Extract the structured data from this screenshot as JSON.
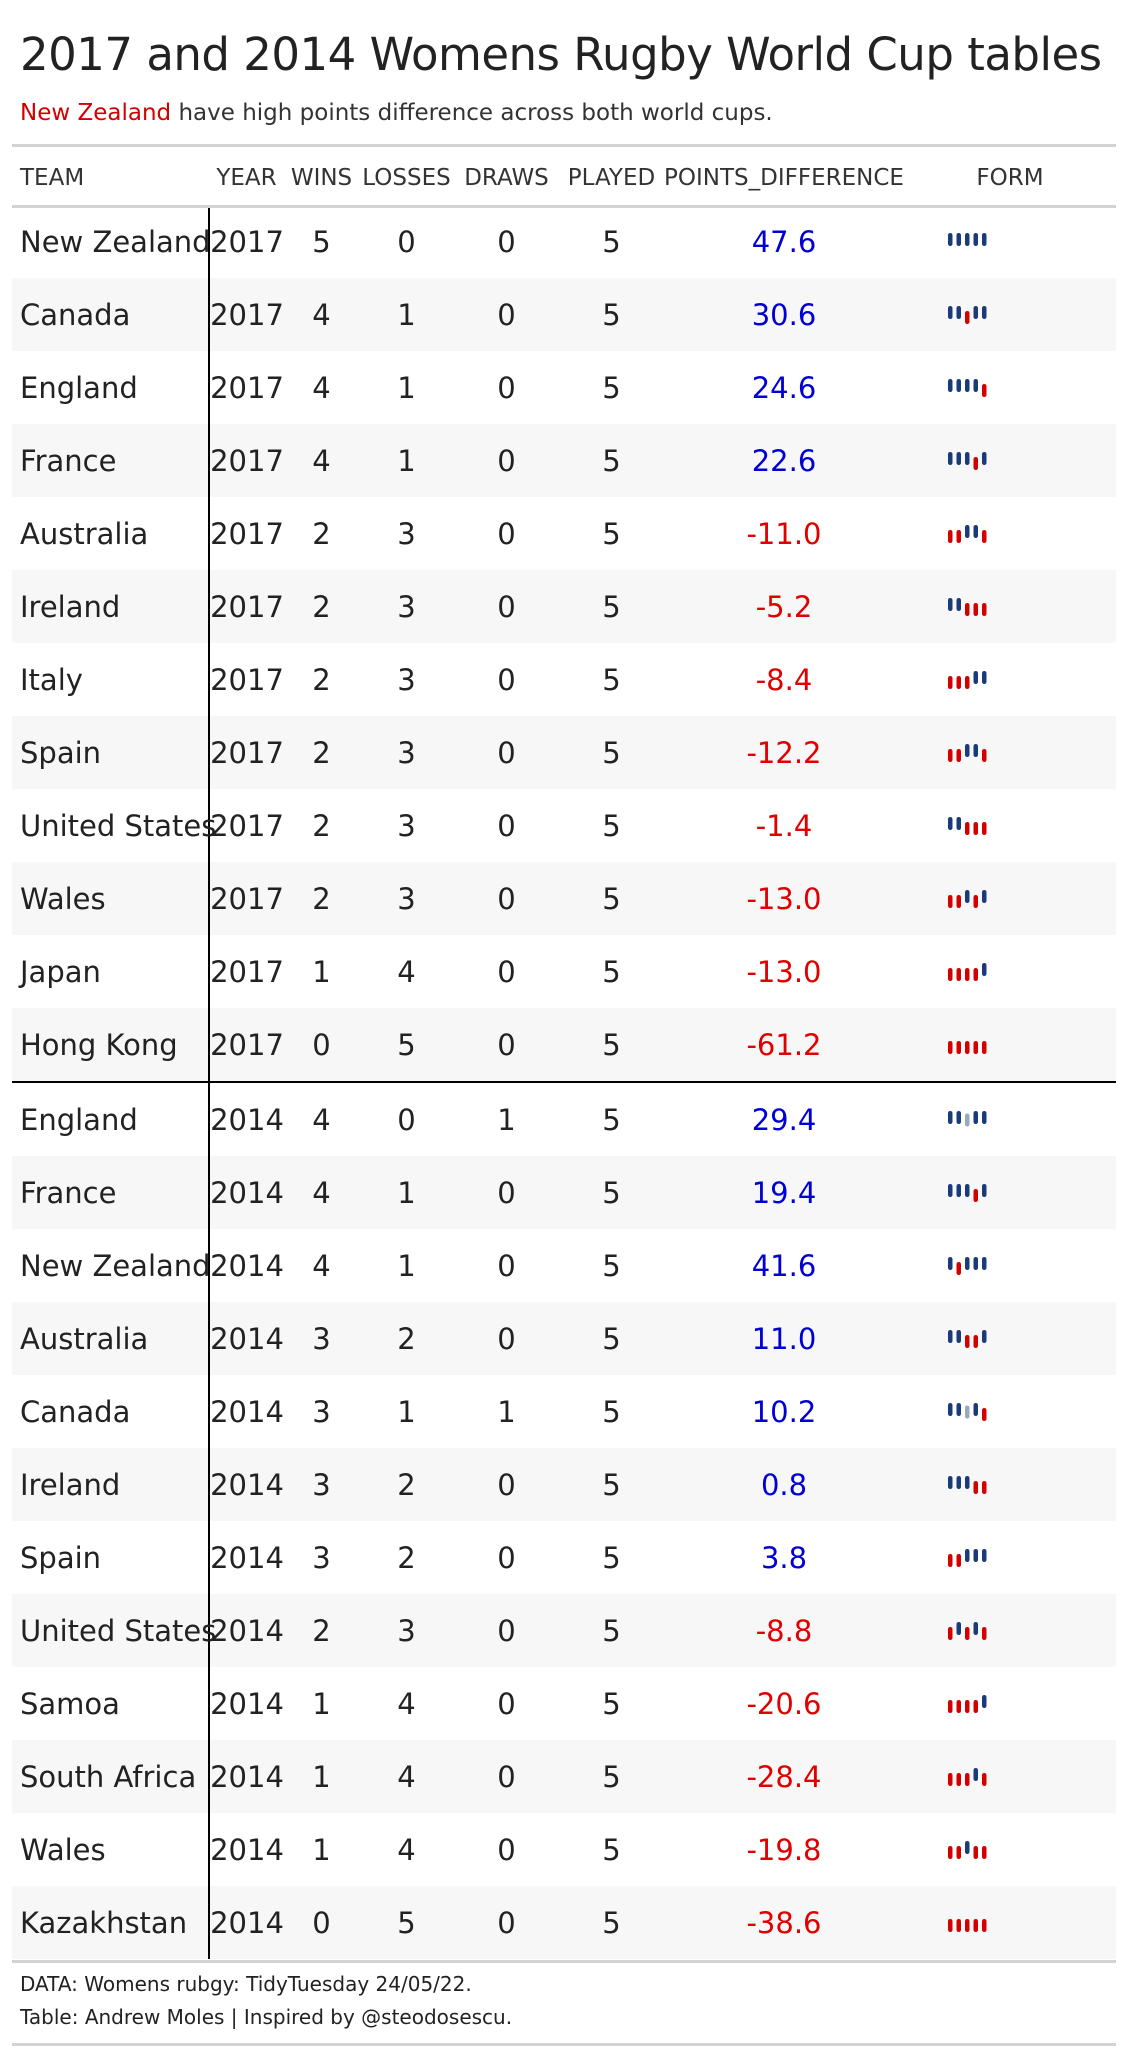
{
  "header": {
    "title": "2017 and 2014 Womens Rugby World Cup tables",
    "subtitle_highlight": "New Zealand",
    "subtitle_rest": " have high points difference across both world cups."
  },
  "columns": [
    "TEAM",
    "YEAR",
    "WINS",
    "LOSSES",
    "DRAWS",
    "PLAYED",
    "POINTS_DIFFERENCE",
    "FORM"
  ],
  "colors": {
    "win": "#1a3a7a",
    "loss": "#d40000",
    "draw": "#9aa9b8",
    "pd_positive": "#0000d4",
    "pd_negative": "#e00000"
  },
  "chart_data": {
    "type": "table",
    "form_legend": {
      "W": "win",
      "L": "loss",
      "D": "draw"
    },
    "rows": [
      {
        "team": "New Zealand",
        "year": "2017",
        "wins": "5",
        "losses": "0",
        "draws": "0",
        "played": "5",
        "pd": "47.6",
        "form": [
          "W",
          "W",
          "W",
          "W",
          "W"
        ]
      },
      {
        "team": "Canada",
        "year": "2017",
        "wins": "4",
        "losses": "1",
        "draws": "0",
        "played": "5",
        "pd": "30.6",
        "form": [
          "W",
          "W",
          "L",
          "W",
          "W"
        ]
      },
      {
        "team": "England",
        "year": "2017",
        "wins": "4",
        "losses": "1",
        "draws": "0",
        "played": "5",
        "pd": "24.6",
        "form": [
          "W",
          "W",
          "W",
          "W",
          "L"
        ]
      },
      {
        "team": "France",
        "year": "2017",
        "wins": "4",
        "losses": "1",
        "draws": "0",
        "played": "5",
        "pd": "22.6",
        "form": [
          "W",
          "W",
          "W",
          "L",
          "W"
        ]
      },
      {
        "team": "Australia",
        "year": "2017",
        "wins": "2",
        "losses": "3",
        "draws": "0",
        "played": "5",
        "pd": "-11.0",
        "form": [
          "L",
          "L",
          "W",
          "W",
          "L"
        ]
      },
      {
        "team": "Ireland",
        "year": "2017",
        "wins": "2",
        "losses": "3",
        "draws": "0",
        "played": "5",
        "pd": "-5.2",
        "form": [
          "W",
          "W",
          "L",
          "L",
          "L"
        ]
      },
      {
        "team": "Italy",
        "year": "2017",
        "wins": "2",
        "losses": "3",
        "draws": "0",
        "played": "5",
        "pd": "-8.4",
        "form": [
          "L",
          "L",
          "L",
          "W",
          "W"
        ]
      },
      {
        "team": "Spain",
        "year": "2017",
        "wins": "2",
        "losses": "3",
        "draws": "0",
        "played": "5",
        "pd": "-12.2",
        "form": [
          "L",
          "L",
          "W",
          "W",
          "L"
        ]
      },
      {
        "team": "United States",
        "year": "2017",
        "wins": "2",
        "losses": "3",
        "draws": "0",
        "played": "5",
        "pd": "-1.4",
        "form": [
          "W",
          "W",
          "L",
          "L",
          "L"
        ]
      },
      {
        "team": "Wales",
        "year": "2017",
        "wins": "2",
        "losses": "3",
        "draws": "0",
        "played": "5",
        "pd": "-13.0",
        "form": [
          "L",
          "L",
          "W",
          "L",
          "W"
        ]
      },
      {
        "team": "Japan",
        "year": "2017",
        "wins": "1",
        "losses": "4",
        "draws": "0",
        "played": "5",
        "pd": "-13.0",
        "form": [
          "L",
          "L",
          "L",
          "L",
          "W"
        ]
      },
      {
        "team": "Hong Kong",
        "year": "2017",
        "wins": "0",
        "losses": "5",
        "draws": "0",
        "played": "5",
        "pd": "-61.2",
        "form": [
          "L",
          "L",
          "L",
          "L",
          "L"
        ]
      },
      {
        "team": "England",
        "year": "2014",
        "wins": "4",
        "losses": "0",
        "draws": "1",
        "played": "5",
        "pd": "29.4",
        "form": [
          "W",
          "W",
          "D",
          "W",
          "W"
        ]
      },
      {
        "team": "France",
        "year": "2014",
        "wins": "4",
        "losses": "1",
        "draws": "0",
        "played": "5",
        "pd": "19.4",
        "form": [
          "W",
          "W",
          "W",
          "L",
          "W"
        ]
      },
      {
        "team": "New Zealand",
        "year": "2014",
        "wins": "4",
        "losses": "1",
        "draws": "0",
        "played": "5",
        "pd": "41.6",
        "form": [
          "W",
          "L",
          "W",
          "W",
          "W"
        ]
      },
      {
        "team": "Australia",
        "year": "2014",
        "wins": "3",
        "losses": "2",
        "draws": "0",
        "played": "5",
        "pd": "11.0",
        "form": [
          "W",
          "W",
          "L",
          "L",
          "W"
        ]
      },
      {
        "team": "Canada",
        "year": "2014",
        "wins": "3",
        "losses": "1",
        "draws": "1",
        "played": "5",
        "pd": "10.2",
        "form": [
          "W",
          "W",
          "D",
          "W",
          "L"
        ]
      },
      {
        "team": "Ireland",
        "year": "2014",
        "wins": "3",
        "losses": "2",
        "draws": "0",
        "played": "5",
        "pd": "0.8",
        "form": [
          "W",
          "W",
          "W",
          "L",
          "L"
        ]
      },
      {
        "team": "Spain",
        "year": "2014",
        "wins": "3",
        "losses": "2",
        "draws": "0",
        "played": "5",
        "pd": "3.8",
        "form": [
          "L",
          "L",
          "W",
          "W",
          "W"
        ]
      },
      {
        "team": "United States",
        "year": "2014",
        "wins": "2",
        "losses": "3",
        "draws": "0",
        "played": "5",
        "pd": "-8.8",
        "form": [
          "L",
          "W",
          "L",
          "W",
          "L"
        ]
      },
      {
        "team": "Samoa",
        "year": "2014",
        "wins": "1",
        "losses": "4",
        "draws": "0",
        "played": "5",
        "pd": "-20.6",
        "form": [
          "L",
          "L",
          "L",
          "L",
          "W"
        ]
      },
      {
        "team": "South Africa",
        "year": "2014",
        "wins": "1",
        "losses": "4",
        "draws": "0",
        "played": "5",
        "pd": "-28.4",
        "form": [
          "L",
          "L",
          "L",
          "W",
          "L"
        ]
      },
      {
        "team": "Wales",
        "year": "2014",
        "wins": "1",
        "losses": "4",
        "draws": "0",
        "played": "5",
        "pd": "-19.8",
        "form": [
          "L",
          "L",
          "W",
          "L",
          "L"
        ]
      },
      {
        "team": "Kazakhstan",
        "year": "2014",
        "wins": "0",
        "losses": "5",
        "draws": "0",
        "played": "5",
        "pd": "-38.6",
        "form": [
          "L",
          "L",
          "L",
          "L",
          "L"
        ]
      }
    ]
  },
  "footer": {
    "line1": "DATA: Womens rubgy: TidyTuesday 24/05/22.",
    "line2": "Table: Andrew Moles | Inspired by @steodosescu."
  }
}
